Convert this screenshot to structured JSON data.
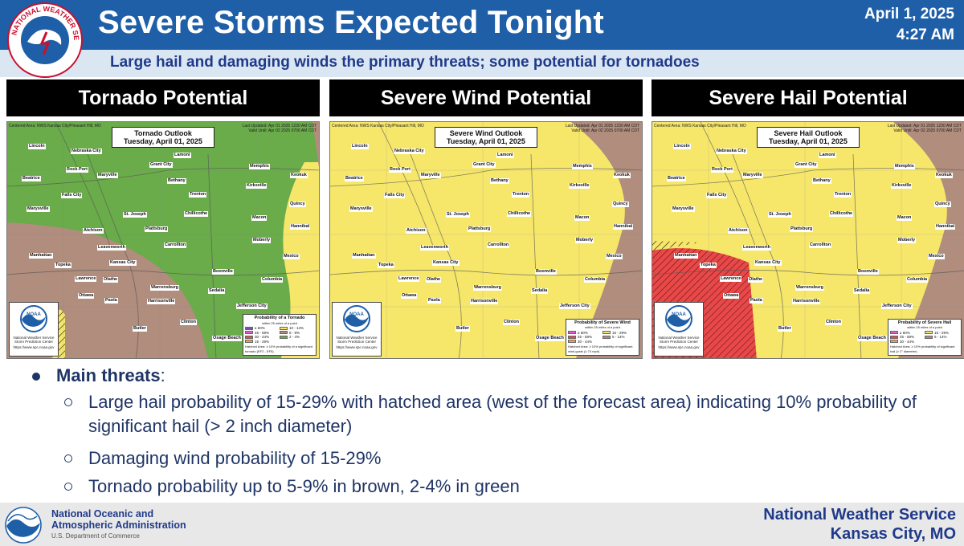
{
  "header": {
    "title": "Severe Storms Expected Tonight",
    "date": "April 1, 2025",
    "time": "4:27 AM",
    "subtitle": "Large hail and damaging winds the primary threats; some potential for tornadoes",
    "logo_text": "NATIONAL WEATHER SERVICE"
  },
  "colors": {
    "header_blue": "#1f5fa8",
    "text_navy": "#1f3566",
    "risk_green": "#6aab4a",
    "risk_brown": "#b08d7d",
    "risk_yellow": "#f6e76b",
    "risk_red": "#e84848"
  },
  "map_common": {
    "centered_area": "Centered Area: NWS Kansas City/Pleasant Hill, MO",
    "last_updated": "Last Updated: Apr 01 2025 1230 AM CDT",
    "valid_until": "Valid Until: Apr 02 2025 0700 AM CDT",
    "date_line": "Tuesday, April 01, 2025",
    "noaa_label": "NOAA",
    "noaa_caption": "National Weather Service Storm Prediction Center",
    "noaa_url": "https://www.spc.noaa.gov",
    "legend_subtitle": "within 25 miles of a point",
    "cities": {
      "lincoln": "Lincoln",
      "nebraska_city": "Nebraska City",
      "lamoni": "Lamoni",
      "memphis": "Memphis",
      "keokuk": "Keokuk",
      "grant_city": "Grant City",
      "rock_port": "Rock Port",
      "maryville": "Maryville",
      "beatrice": "Beatrice",
      "bethany": "Bethany",
      "kirksville": "Kirksville",
      "falls_city": "Falls City",
      "trenton": "Trenton",
      "quincy": "Quincy",
      "marysville": "Marysville",
      "st_joseph": "St. Joseph",
      "chillicothe": "Chillicothe",
      "macon": "Macon",
      "hannibal": "Hannibal",
      "atchison": "Atchison",
      "plattsburg": "Plattsburg",
      "moberly": "Moberly",
      "carrollton": "Carrollton",
      "manhattan": "Manhattan",
      "leavenworth": "Leavenworth",
      "mexico": "Mexico",
      "topeka": "Topeka",
      "kansas_city": "Kansas City",
      "boonville": "Boonville",
      "lawrence": "Lawrence",
      "olathe": "Olathe",
      "columbia": "Columbia",
      "warrensburg": "Warrensburg",
      "sedalia": "Sedalia",
      "ottawa": "Ottawa",
      "paola": "Paola",
      "harrisonville": "Harrisonville",
      "jefferson_city": "Jefferson City",
      "butler": "Butler",
      "clinton": "Clinton",
      "osage_beach": "Osage Beach"
    }
  },
  "panels": [
    {
      "title": "Tornado Potential",
      "outlook_title": "Tornado Outlook",
      "legend_title": "Probability of a Tornado",
      "legend": [
        "≥ 60%",
        "10 - 14%",
        "45 - 59%",
        "5 - 9%",
        "30 - 44%",
        "2 - 4%",
        "15 - 29%",
        ""
      ],
      "legend_colors": [
        "#7b4fb0",
        "#f6e76b",
        "#e35bd8",
        "#b08d7d",
        "#e84848",
        "#6aab4a",
        "#f4a347",
        ""
      ],
      "hatch_note": "Hatched Area: ≥ 10% probability of a significant tornado (EF2 - EF5)"
    },
    {
      "title": "Severe Wind Potential",
      "outlook_title": "Severe Wind Outlook",
      "legend_title": "Probability of Severe Wind",
      "legend": [
        "≥ 60%",
        "15 - 29%",
        "45 - 59%",
        "5 - 14%",
        "30 - 44%",
        ""
      ],
      "legend_colors": [
        "#e35bd8",
        "#f6e76b",
        "#e84848",
        "#b08d7d",
        "#f4a347",
        ""
      ],
      "hatch_note": "Hatched Area: ≥ 10% probability of significant wind gusts (≥ 74 mph)"
    },
    {
      "title": "Severe Hail Potential",
      "outlook_title": "Severe Hail Outlook",
      "legend_title": "Probability of Severe Hail",
      "legend": [
        "≥ 60%",
        "15 - 29%",
        "45 - 59%",
        "5 - 14%",
        "30 - 44%",
        ""
      ],
      "legend_colors": [
        "#e35bd8",
        "#f6e76b",
        "#e84848",
        "#b08d7d",
        "#f4a347",
        ""
      ],
      "hatch_note": "Hatched Area: ≥ 10% probability of significant hail (≥ 2\" diameter)"
    }
  ],
  "bullets": {
    "main_label": "Main threats",
    "main_suffix": ":",
    "items": [
      "Large hail probability of 15-29% with hatched area (west of the forecast area) indicating 10% probability of significant hail (> 2 inch diameter)",
      "Damaging wind probability of 15-29%",
      "Tornado probability up to 5-9% in brown, 2-4% in green"
    ]
  },
  "footer": {
    "org_line1": "National Oceanic and",
    "org_line2": "Atmospheric Administration",
    "dept": "U.S. Department of Commerce",
    "office_line1": "National Weather Service",
    "office_line2": "Kansas City, MO"
  }
}
